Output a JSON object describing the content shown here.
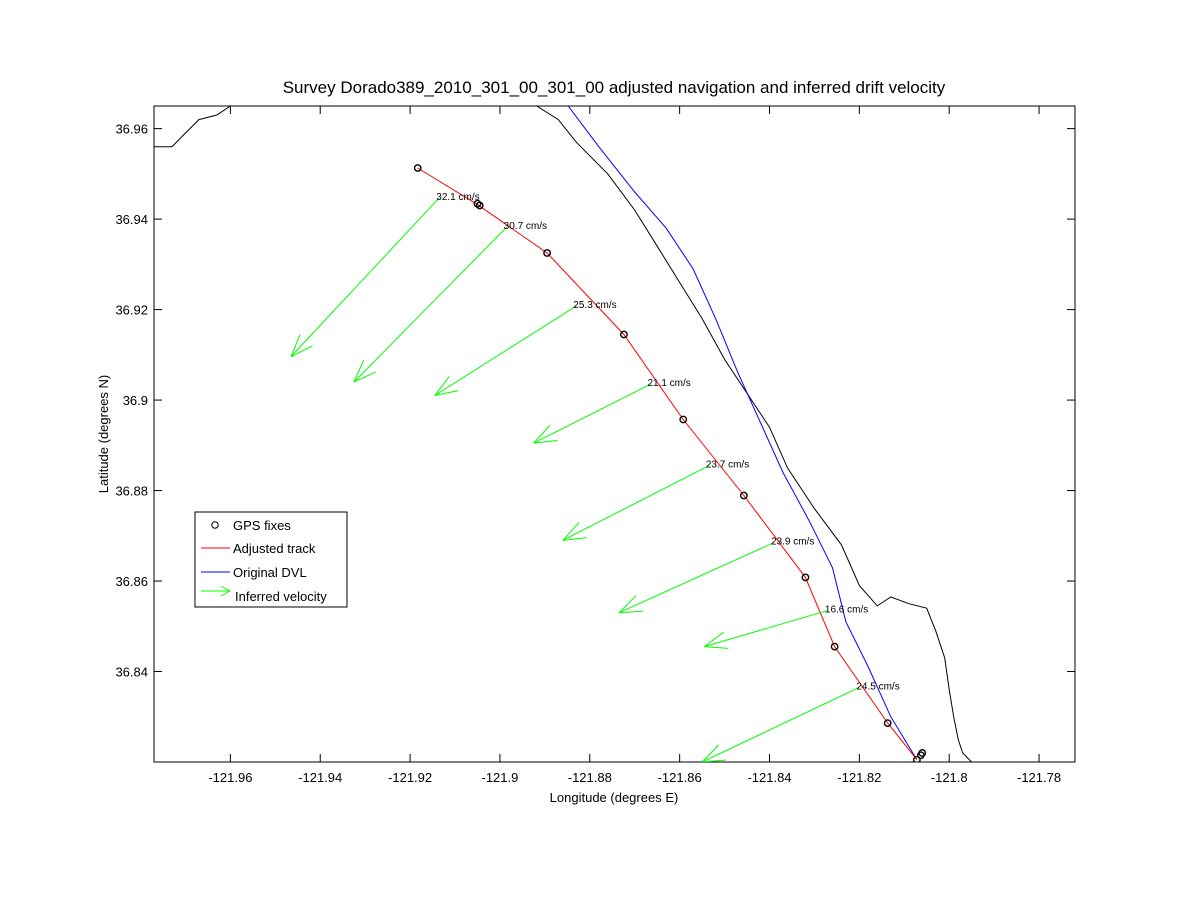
{
  "chart_data": {
    "type": "line",
    "title": "Survey Dorado389_2010_301_00_301_00 adjusted navigation and inferred drift velocity",
    "xlabel": "Longitude (degrees E)",
    "ylabel": "Latitude (degrees N)",
    "xlim": [
      -121.977,
      -121.772
    ],
    "ylim": [
      36.82,
      36.965
    ],
    "xticks": [
      -121.96,
      -121.94,
      -121.92,
      -121.9,
      -121.88,
      -121.86,
      -121.84,
      -121.82,
      -121.8,
      -121.78
    ],
    "xtick_labels": [
      "-121.96",
      "-121.94",
      "-121.92",
      "-121.9",
      "-121.88",
      "-121.86",
      "-121.84",
      "-121.82",
      "-121.8",
      "-121.78"
    ],
    "yticks": [
      36.84,
      36.86,
      36.88,
      36.9,
      36.92,
      36.94,
      36.96
    ],
    "ytick_labels": [
      "36.84",
      "36.86",
      "36.88",
      "36.9",
      "36.92",
      "36.94",
      "36.96"
    ],
    "grid": false,
    "legend_position": "center-left",
    "legend": [
      {
        "label": "GPS fixes",
        "kind": "marker",
        "color": "#000000"
      },
      {
        "label": "Adjusted track",
        "kind": "line",
        "color": "#ff0000"
      },
      {
        "label": "Original DVL",
        "kind": "line",
        "color": "#0000ff"
      },
      {
        "label": "Inferred velocity",
        "kind": "arrow",
        "color": "#00ff00"
      }
    ],
    "series": [
      {
        "name": "GPS fixes",
        "style": "marker",
        "color": "#000000",
        "x": [
          -121.9183,
          -121.905,
          -121.9045,
          -121.8895,
          -121.8724,
          -121.8592,
          -121.8457,
          -121.832,
          -121.8255,
          -121.8137,
          -121.8072,
          -121.806,
          -121.8063
        ],
        "y": [
          36.9513,
          36.9434,
          36.943,
          36.9325,
          36.9145,
          36.8957,
          36.8789,
          36.8608,
          36.8455,
          36.8286,
          36.8205,
          36.822,
          36.8215
        ]
      },
      {
        "name": "Adjusted track",
        "style": "line",
        "color": "#ff0000",
        "x": [
          -121.9183,
          -121.905,
          -121.8895,
          -121.8724,
          -121.8592,
          -121.8457,
          -121.832,
          -121.8255,
          -121.8137,
          -121.8072
        ],
        "y": [
          36.9513,
          36.9432,
          36.9325,
          36.9145,
          36.8957,
          36.8789,
          36.8608,
          36.8455,
          36.8286,
          36.8205
        ]
      },
      {
        "name": "Original DVL",
        "style": "line",
        "color": "#0000ff",
        "x": [
          -121.8848,
          -121.878,
          -121.87,
          -121.863,
          -121.857,
          -121.852,
          -121.847,
          -121.842,
          -121.837,
          -121.831,
          -121.826,
          -121.823,
          -121.818,
          -121.813,
          -121.8072
        ],
        "y": [
          36.965,
          36.956,
          36.946,
          36.938,
          36.929,
          36.918,
          36.906,
          36.895,
          36.884,
          36.873,
          36.863,
          36.851,
          36.841,
          36.83,
          36.8205
        ]
      },
      {
        "name": "Coastline",
        "style": "line",
        "color": "#000000",
        "x": [
          -121.977,
          -121.973,
          -121.97,
          -121.967,
          -121.963,
          -121.96,
          -121.959
        ],
        "y": [
          36.956,
          36.956,
          36.959,
          36.962,
          36.963,
          36.965,
          36.965
        ]
      },
      {
        "name": "Coastline",
        "style": "line",
        "color": "#000000",
        "x": [
          -121.8918,
          -121.887,
          -121.883,
          -121.876,
          -121.87,
          -121.865,
          -121.86,
          -121.855,
          -121.85,
          -121.846,
          -121.84,
          -121.836,
          -121.83,
          -121.824,
          -121.82,
          -121.816,
          -121.813,
          -121.809,
          -121.805,
          -121.803,
          -121.801,
          -121.8,
          -121.799,
          -121.798,
          -121.797,
          -121.796,
          -121.795
        ],
        "y": [
          36.965,
          36.962,
          36.957,
          36.95,
          36.942,
          36.934,
          36.926,
          36.918,
          36.909,
          36.903,
          36.894,
          36.885,
          36.876,
          36.868,
          36.859,
          36.8545,
          36.8565,
          36.855,
          36.854,
          36.849,
          36.843,
          36.836,
          36.83,
          36.825,
          36.822,
          36.821,
          36.82
        ]
      }
    ],
    "arrows": [
      {
        "label": "32.1 cm/s",
        "x0": -121.9135,
        "y0": 36.9447,
        "x1": -121.9465,
        "y1": 36.9096
      },
      {
        "label": "30.7 cm/s",
        "x0": -121.8985,
        "y0": 36.9382,
        "x1": -121.9325,
        "y1": 36.904
      },
      {
        "label": "25.3 cm/s",
        "x0": -121.883,
        "y0": 36.9208,
        "x1": -121.9145,
        "y1": 36.901
      },
      {
        "label": "21.1 cm/s",
        "x0": -121.8665,
        "y0": 36.9035,
        "x1": -121.8925,
        "y1": 36.8905
      },
      {
        "label": "23.7 cm/s",
        "x0": -121.8535,
        "y0": 36.8855,
        "x1": -121.886,
        "y1": 36.869
      },
      {
        "label": "23.9 cm/s",
        "x0": -121.839,
        "y0": 36.8685,
        "x1": -121.8735,
        "y1": 36.853
      },
      {
        "label": "16.6 cm/s",
        "x0": -121.827,
        "y0": 36.8535,
        "x1": -121.8545,
        "y1": 36.8455
      },
      {
        "label": "24.5 cm/s",
        "x0": -121.82,
        "y0": 36.8365,
        "x1": -121.855,
        "y1": 36.82
      }
    ]
  }
}
